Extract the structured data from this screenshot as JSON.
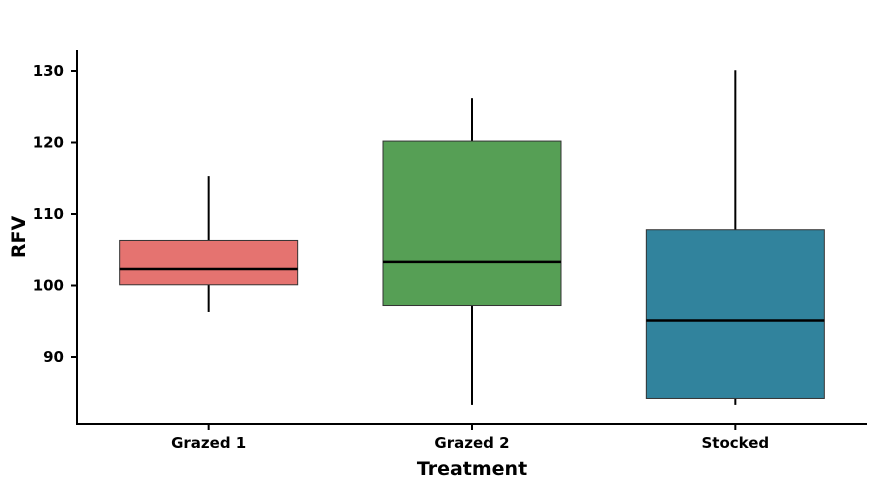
{
  "chart_data": {
    "type": "boxplot",
    "title": "",
    "xlabel": "Treatment",
    "ylabel": "RFV",
    "ylim": [
      81,
      132
    ],
    "yticks": [
      90,
      100,
      110,
      120,
      130
    ],
    "grid": false,
    "categories": [
      "Grazed 1",
      "Grazed 2",
      "Stocked"
    ],
    "boxes": [
      {
        "category": "Grazed 1",
        "whisker_low": 96.3,
        "q1": 100.1,
        "median": 102.3,
        "q3": 106.3,
        "whisker_high": 115.3,
        "color": "#E57370"
      },
      {
        "category": "Grazed 2",
        "whisker_low": 83.3,
        "q1": 97.2,
        "median": 103.3,
        "q3": 120.2,
        "whisker_high": 126.2,
        "color": "#569F55"
      },
      {
        "category": "Stocked",
        "whisker_low": 83.3,
        "q1": 84.2,
        "median": 95.1,
        "q3": 107.8,
        "whisker_high": 130.1,
        "color": "#31839D"
      }
    ]
  }
}
